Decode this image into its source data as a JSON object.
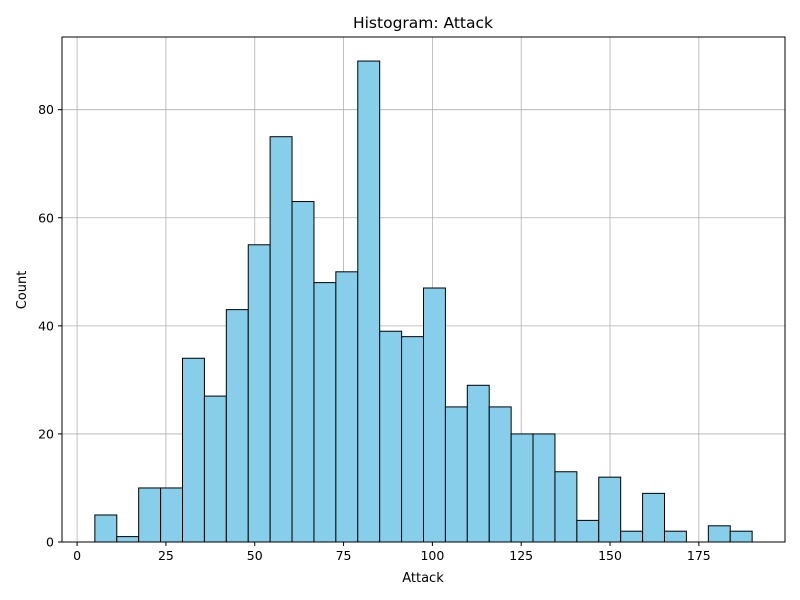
{
  "chart_data": {
    "type": "bar",
    "title": "Histogram: Attack",
    "xlabel": "Attack",
    "ylabel": "Count",
    "bin_width": 6.17,
    "bins": [
      {
        "x0": 5.0,
        "count": 5
      },
      {
        "x0": 11.17,
        "count": 1
      },
      {
        "x0": 17.33,
        "count": 10
      },
      {
        "x0": 23.5,
        "count": 10
      },
      {
        "x0": 29.67,
        "count": 34
      },
      {
        "x0": 35.83,
        "count": 27
      },
      {
        "x0": 42.0,
        "count": 43
      },
      {
        "x0": 48.17,
        "count": 55
      },
      {
        "x0": 54.33,
        "count": 75
      },
      {
        "x0": 60.5,
        "count": 63
      },
      {
        "x0": 66.67,
        "count": 48
      },
      {
        "x0": 72.83,
        "count": 50
      },
      {
        "x0": 79.0,
        "count": 89
      },
      {
        "x0": 85.17,
        "count": 39
      },
      {
        "x0": 91.33,
        "count": 38
      },
      {
        "x0": 97.5,
        "count": 47
      },
      {
        "x0": 103.67,
        "count": 25
      },
      {
        "x0": 109.83,
        "count": 29
      },
      {
        "x0": 116.0,
        "count": 25
      },
      {
        "x0": 122.17,
        "count": 20
      },
      {
        "x0": 128.33,
        "count": 20
      },
      {
        "x0": 134.5,
        "count": 13
      },
      {
        "x0": 140.67,
        "count": 4
      },
      {
        "x0": 146.83,
        "count": 12
      },
      {
        "x0": 153.0,
        "count": 2
      },
      {
        "x0": 159.17,
        "count": 9
      },
      {
        "x0": 165.33,
        "count": 2
      },
      {
        "x0": 171.5,
        "count": 0
      },
      {
        "x0": 177.67,
        "count": 3
      },
      {
        "x0": 183.83,
        "count": 2
      }
    ],
    "xlim": [
      -4.25,
      199.25
    ],
    "ylim": [
      0,
      93.45
    ],
    "xticks": [
      0,
      25,
      50,
      75,
      100,
      125,
      150,
      175
    ],
    "yticks": [
      0,
      20,
      40,
      60,
      80
    ],
    "grid": true,
    "colors": {
      "bar_fill": "#87ceeb",
      "bar_edge": "#000000",
      "grid": "#b0b0b0"
    }
  }
}
